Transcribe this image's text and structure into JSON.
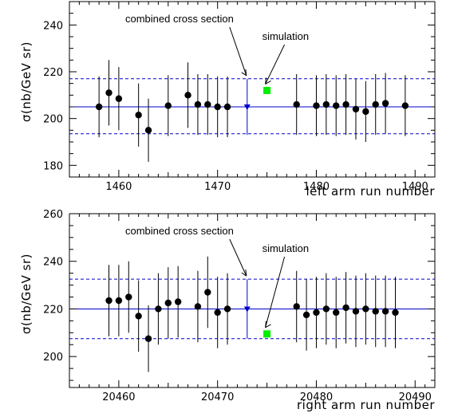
{
  "chart_data": [
    {
      "type": "scatter",
      "xlabel": "left arm run number",
      "ylabel": "σ(nb/GeV  sr)",
      "xlim": [
        1455,
        1492
      ],
      "ylim": [
        175,
        250
      ],
      "xticks": [
        1460,
        1470,
        1480,
        1490
      ],
      "yticks": [
        180,
        200,
        220,
        240
      ],
      "colors": {
        "data": "#000000",
        "combined": "#0000cc",
        "simulation": "#00ee00"
      },
      "reference_lines": {
        "combined": 205,
        "upper": 217,
        "lower": 193.5
      },
      "points": [
        {
          "x": 1458,
          "y": 205,
          "err": 13
        },
        {
          "x": 1459,
          "y": 211,
          "err": 14
        },
        {
          "x": 1460,
          "y": 208.5,
          "err": 13.5
        },
        {
          "x": 1462,
          "y": 201.5,
          "err": 13.5
        },
        {
          "x": 1463,
          "y": 195,
          "err": 13.5
        },
        {
          "x": 1465,
          "y": 205.5,
          "err": 13
        },
        {
          "x": 1467,
          "y": 210,
          "err": 14
        },
        {
          "x": 1468,
          "y": 206,
          "err": 13
        },
        {
          "x": 1469,
          "y": 206,
          "err": 13
        },
        {
          "x": 1470,
          "y": 205,
          "err": 13
        },
        {
          "x": 1471,
          "y": 205,
          "err": 13
        },
        {
          "x": 1478,
          "y": 206,
          "err": 13
        },
        {
          "x": 1480,
          "y": 205.5,
          "err": 13
        },
        {
          "x": 1481,
          "y": 206,
          "err": 13
        },
        {
          "x": 1482,
          "y": 205.5,
          "err": 13
        },
        {
          "x": 1483,
          "y": 206,
          "err": 13
        },
        {
          "x": 1484,
          "y": 204,
          "err": 13
        },
        {
          "x": 1485,
          "y": 203,
          "err": 13
        },
        {
          "x": 1486,
          "y": 206,
          "err": 13
        },
        {
          "x": 1487,
          "y": 206.5,
          "err": 13
        },
        {
          "x": 1489,
          "y": 205.5,
          "err": 13
        }
      ],
      "combined": {
        "x": 1473,
        "y": 205,
        "err": 12
      },
      "simulation": {
        "x": 1475,
        "y": 212
      },
      "annotations": [
        {
          "text": "combined  cross section",
          "target": "combined"
        },
        {
          "text": "simulation",
          "target": "simulation"
        }
      ]
    },
    {
      "type": "scatter",
      "xlabel": "right arm run number",
      "ylabel": "σ(nb/GeV  sr)",
      "xlim": [
        20455,
        20492
      ],
      "ylim": [
        187,
        260
      ],
      "xticks": [
        20460,
        20470,
        20480,
        20490
      ],
      "yticks": [
        200,
        220,
        240,
        260
      ],
      "colors": {
        "data": "#000000",
        "combined": "#0000cc",
        "simulation": "#00ee00"
      },
      "reference_lines": {
        "combined": 220,
        "upper": 232.5,
        "lower": 207.5
      },
      "points": [
        {
          "x": 20459,
          "y": 223.5,
          "err": 15
        },
        {
          "x": 20460,
          "y": 223.5,
          "err": 15
        },
        {
          "x": 20461,
          "y": 225,
          "err": 15
        },
        {
          "x": 20462,
          "y": 217,
          "err": 15
        },
        {
          "x": 20463,
          "y": 207.5,
          "err": 14
        },
        {
          "x": 20464,
          "y": 220,
          "err": 15
        },
        {
          "x": 20465,
          "y": 222.5,
          "err": 15
        },
        {
          "x": 20466,
          "y": 223,
          "err": 15
        },
        {
          "x": 20468,
          "y": 221,
          "err": 15
        },
        {
          "x": 20469,
          "y": 227,
          "err": 15
        },
        {
          "x": 20470,
          "y": 218.5,
          "err": 15
        },
        {
          "x": 20471,
          "y": 220,
          "err": 15
        },
        {
          "x": 20478,
          "y": 221,
          "err": 15
        },
        {
          "x": 20479,
          "y": 217.5,
          "err": 15
        },
        {
          "x": 20480,
          "y": 218.5,
          "err": 15
        },
        {
          "x": 20481,
          "y": 220,
          "err": 15
        },
        {
          "x": 20482,
          "y": 218.5,
          "err": 15
        },
        {
          "x": 20483,
          "y": 220.5,
          "err": 15
        },
        {
          "x": 20484,
          "y": 219,
          "err": 15
        },
        {
          "x": 20485,
          "y": 220,
          "err": 15
        },
        {
          "x": 20486,
          "y": 219,
          "err": 15
        },
        {
          "x": 20487,
          "y": 219,
          "err": 15
        },
        {
          "x": 20488,
          "y": 218.5,
          "err": 15
        }
      ],
      "combined": {
        "x": 20473,
        "y": 220,
        "err": 12.5
      },
      "simulation": {
        "x": 20475,
        "y": 209.5
      },
      "annotations": [
        {
          "text": "combined  cross section",
          "target": "combined"
        },
        {
          "text": "simulation",
          "target": "simulation"
        }
      ]
    }
  ]
}
